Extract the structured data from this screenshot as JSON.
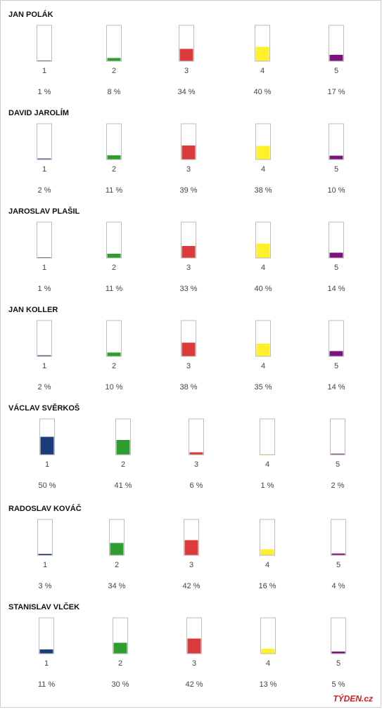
{
  "chart_data": [
    {
      "type": "bar",
      "title": "JAN POLÁK",
      "categories": [
        "1",
        "2",
        "3",
        "4",
        "5"
      ],
      "values": [
        1,
        8,
        34,
        40,
        17
      ],
      "value_labels": [
        "1 %",
        "8 %",
        "34 %",
        "40 %",
        "17 %"
      ],
      "colors": [
        "#1b3d7a",
        "#2e9e2e",
        "#dc3a3a",
        "#fff02a",
        "#7d137c"
      ],
      "ylim": [
        0,
        100
      ]
    },
    {
      "type": "bar",
      "title": "DAVID JAROLÍM",
      "categories": [
        "1",
        "2",
        "3",
        "4",
        "5"
      ],
      "values": [
        2,
        11,
        39,
        38,
        10
      ],
      "value_labels": [
        "2 %",
        "11 %",
        "39 %",
        "38 %",
        "10 %"
      ],
      "colors": [
        "#1b3d7a",
        "#2e9e2e",
        "#dc3a3a",
        "#fff02a",
        "#7d137c"
      ],
      "ylim": [
        0,
        100
      ]
    },
    {
      "type": "bar",
      "title": "JAROSLAV PLAŠIL",
      "categories": [
        "1",
        "2",
        "3",
        "4",
        "5"
      ],
      "values": [
        1,
        11,
        33,
        40,
        14
      ],
      "value_labels": [
        "1 %",
        "11 %",
        "33 %",
        "40 %",
        "14 %"
      ],
      "colors": [
        "#1b3d7a",
        "#2e9e2e",
        "#dc3a3a",
        "#fff02a",
        "#7d137c"
      ],
      "ylim": [
        0,
        100
      ]
    },
    {
      "type": "bar",
      "title": "JAN KOLLER",
      "categories": [
        "1",
        "2",
        "3",
        "4",
        "5"
      ],
      "values": [
        2,
        10,
        38,
        35,
        14
      ],
      "value_labels": [
        "2 %",
        "10 %",
        "38 %",
        "35 %",
        "14 %"
      ],
      "colors": [
        "#1b3d7a",
        "#2e9e2e",
        "#dc3a3a",
        "#fff02a",
        "#7d137c"
      ],
      "ylim": [
        0,
        100
      ]
    },
    {
      "type": "bar",
      "title": "VÁCLAV SVĚRKOŠ",
      "categories": [
        "1",
        "2",
        "3",
        "4",
        "5"
      ],
      "values": [
        50,
        41,
        6,
        1,
        2
      ],
      "value_labels": [
        "50 %",
        "41 %",
        "6 %",
        "1 %",
        "2 %"
      ],
      "colors": [
        "#1b3d7a",
        "#2e9e2e",
        "#dc3a3a",
        "#fff02a",
        "#7d137c"
      ],
      "ylim": [
        0,
        100
      ]
    },
    {
      "type": "bar",
      "title": "RADOSLAV KOVÁČ",
      "categories": [
        "1",
        "2",
        "3",
        "4",
        "5"
      ],
      "values": [
        3,
        34,
        42,
        16,
        4
      ],
      "value_labels": [
        "3 %",
        "34 %",
        "42 %",
        "16 %",
        "4 %"
      ],
      "colors": [
        "#1b3d7a",
        "#2e9e2e",
        "#dc3a3a",
        "#fff02a",
        "#7d137c"
      ],
      "ylim": [
        0,
        100
      ]
    },
    {
      "type": "bar",
      "title": "STANISLAV VLČEK",
      "categories": [
        "1",
        "2",
        "3",
        "4",
        "5"
      ],
      "values": [
        11,
        30,
        42,
        13,
        5
      ],
      "value_labels": [
        "11 %",
        "30 %",
        "42 %",
        "13 %",
        "5 %"
      ],
      "colors": [
        "#1b3d7a",
        "#2e9e2e",
        "#dc3a3a",
        "#fff02a",
        "#7d137c"
      ],
      "ylim": [
        0,
        100
      ]
    }
  ],
  "logo": "TÝDEN.cz"
}
